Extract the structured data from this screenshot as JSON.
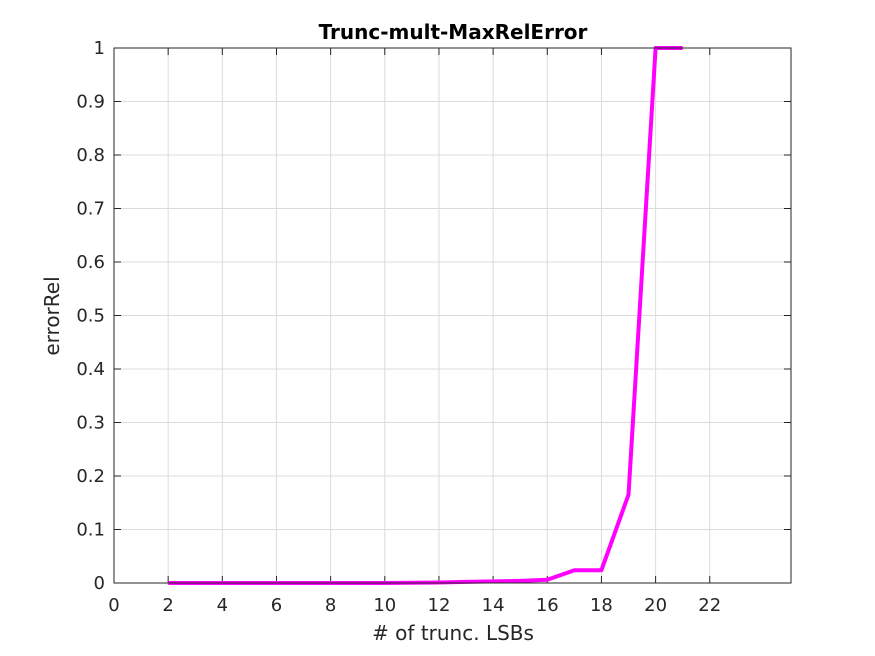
{
  "chart_data": {
    "type": "line",
    "title": "Trunc-mult-MaxRelError",
    "xlabel": "# of trunc. LSBs",
    "ylabel": "errorRel",
    "xlim": [
      0,
      25
    ],
    "ylim": [
      0,
      1
    ],
    "xticks": [
      0,
      2,
      4,
      6,
      8,
      10,
      12,
      14,
      16,
      18,
      20,
      22
    ],
    "yticks": [
      0,
      0.1,
      0.2,
      0.3,
      0.4,
      0.5,
      0.6,
      0.7,
      0.8,
      0.9,
      1
    ],
    "xtick_labels": [
      "0",
      "2",
      "4",
      "6",
      "8",
      "10",
      "12",
      "14",
      "16",
      "18",
      "20",
      "22"
    ],
    "ytick_labels": [
      "0",
      "0.1",
      "0.2",
      "0.3",
      "0.4",
      "0.5",
      "0.6",
      "0.7",
      "0.8",
      "0.9",
      "1"
    ],
    "grid": true,
    "series": [
      {
        "color": "#ff00ff",
        "x": [
          2,
          3,
          4,
          5,
          6,
          7,
          8,
          9,
          10,
          11,
          12,
          13,
          14,
          15,
          16,
          17,
          18,
          19,
          20,
          21
        ],
        "y": [
          0,
          0,
          0,
          0,
          0,
          0,
          0,
          0,
          0,
          0.0005,
          0.001,
          0.002,
          0.003,
          0.004,
          0.006,
          0.024,
          0.024,
          0.165,
          1,
          1
        ]
      }
    ]
  }
}
